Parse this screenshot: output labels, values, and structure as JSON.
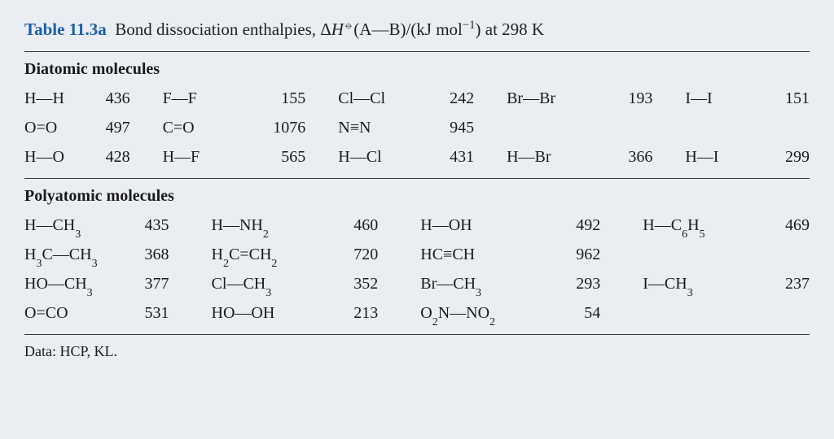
{
  "title": {
    "label": "Table 11.3a",
    "text_before": "Bond dissociation enthalpies, Δ",
    "H": "H",
    "symbol": "⦵",
    "text_AB": "(A—B)/(kJ mol",
    "sup": "−1",
    "text_after": ") at 298 K"
  },
  "diatomic": {
    "heading": "Diatomic molecules",
    "col_widths": {
      "bond_a": 98,
      "val_a": 48,
      "bond_b": 130,
      "val_b": 68,
      "bond_c": 130,
      "val_c": 58,
      "bond_d": 152,
      "val_d": 50,
      "bond_e": 122,
      "val_e": 50
    },
    "rows": [
      {
        "a_bond": "H—H",
        "a_val": "436",
        "b_bond": "F—F",
        "b_val": "155",
        "c_bond": "Cl—Cl",
        "c_val": "242",
        "d_bond": "Br—Br",
        "d_val": "193",
        "e_bond": "I—I",
        "e_val": "151"
      },
      {
        "a_bond": "O=O",
        "a_val": "497",
        "b_bond": "C=O",
        "b_val": "1076",
        "c_bond": "N≡N",
        "c_val": "945",
        "d_bond": "",
        "d_val": "",
        "e_bond": "",
        "e_val": ""
      },
      {
        "a_bond": "H—O",
        "a_val": "428",
        "b_bond": "H—F",
        "b_val": "565",
        "c_bond": "H—Cl",
        "c_val": "431",
        "d_bond": "H—Br",
        "d_val": "366",
        "e_bond": "H—I",
        "e_val": "299"
      }
    ]
  },
  "polyatomic": {
    "heading": "Polyatomic molecules",
    "col_widths": {
      "bond_a": 148,
      "val_a": 48,
      "bond_b": 170,
      "val_b": 56,
      "bond_c": 188,
      "val_c": 56,
      "bond_d": 170,
      "val_d": 56
    },
    "rows": [
      {
        "a_html": "H—CH<sub>3</sub>",
        "a_val": "435",
        "b_html": "H—NH<sub>2</sub>",
        "b_val": "460",
        "c_html": "H—OH",
        "c_val": "492",
        "d_html": "H—C<sub>6</sub>H<sub>5</sub>",
        "d_val": "469"
      },
      {
        "a_html": "H<sub>3</sub>C—CH<sub>3</sub>",
        "a_val": "368",
        "b_html": "H<sub>2</sub>C=CH<sub>2</sub>",
        "b_val": "720",
        "c_html": "HC≡CH",
        "c_val": "962",
        "d_html": "",
        "d_val": ""
      },
      {
        "a_html": "HO—CH<sub>3</sub>",
        "a_val": "377",
        "b_html": "Cl—CH<sub>3</sub>",
        "b_val": "352",
        "c_html": "Br—CH<sub>3</sub>",
        "c_val": "293",
        "d_html": "I—CH<sub>3</sub>",
        "d_val": "237"
      },
      {
        "a_html": "O=CO",
        "a_val": "531",
        "b_html": "HO—OH",
        "b_val": "213",
        "c_html": "O<sub>2</sub>N—NO<sub>2</sub>",
        "c_val": "54",
        "d_html": "",
        "d_val": ""
      }
    ]
  },
  "footnote": "Data: HCP, KL."
}
